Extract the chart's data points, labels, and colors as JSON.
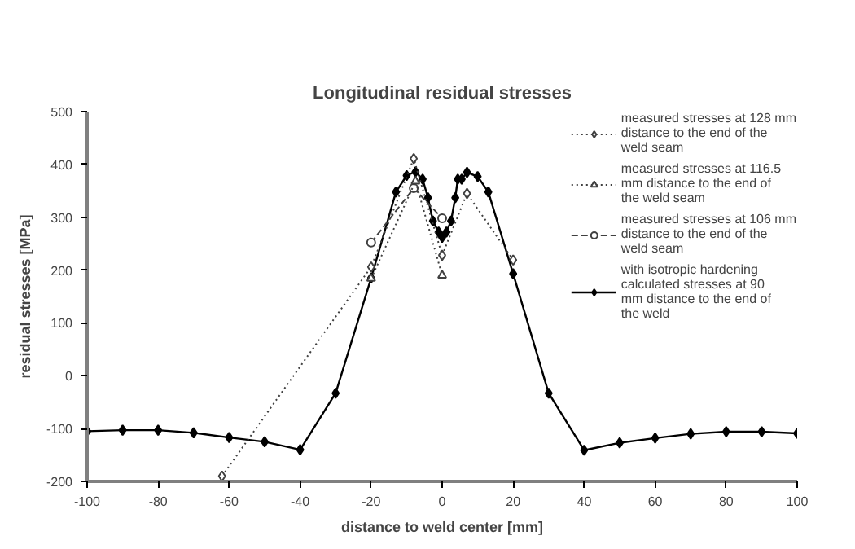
{
  "chart_data": {
    "type": "line",
    "title": "Longitudinal residual stresses",
    "xlabel": "distance to weld center [mm]",
    "ylabel": "residual stresses [MPa]",
    "xlim": [
      -100,
      100
    ],
    "xticks": [
      -100,
      -80,
      -60,
      -40,
      -20,
      0,
      20,
      40,
      60,
      80,
      100
    ],
    "ylim": [
      -200,
      500
    ],
    "yticks": [
      -200,
      -100,
      0,
      100,
      200,
      300,
      400,
      500
    ],
    "grid": false,
    "legend": "top right",
    "series": [
      {
        "name": "measured stresses at 128 mm distance to the end of the weld seam",
        "color": "#404040",
        "marker": "diamond",
        "line_style": "dotted",
        "x": [
          -62,
          -20,
          -8,
          0,
          7,
          20
        ],
        "values": [
          -190,
          206,
          411,
          228,
          345,
          219
        ]
      },
      {
        "name": "measured stresses at 116.5 mm distance to the end of the weld seam",
        "color": "#404040",
        "marker": "triangle",
        "line_style": "dotted",
        "x": [
          -20,
          -7.5,
          0
        ],
        "values": [
          184,
          368,
          190
        ]
      },
      {
        "name": "measured stresses at 106 mm distance to the end of the weld seam",
        "color": "#404040",
        "marker": "circle",
        "line_style": "dashed",
        "x": [
          -20,
          -8,
          0
        ],
        "values": [
          252,
          355,
          298
        ]
      },
      {
        "name": "with isotropic hardening calculated stresses at 90 mm distance to the end of the weld",
        "color": "#000000",
        "marker": "diamond",
        "line_style": "solid",
        "x": [
          -100,
          -90,
          -80,
          -70,
          -60,
          -50,
          -40,
          -30,
          -20,
          -13,
          -10,
          -7.5,
          -5.5,
          -4,
          -2.6,
          -1,
          0,
          1.2,
          2.5,
          3.7,
          4.4,
          5.5,
          7,
          10,
          13,
          20,
          30,
          40,
          50,
          60,
          70,
          80,
          90,
          100
        ],
        "values": [
          -105,
          -103,
          -103,
          -108,
          -117,
          -125,
          -140,
          -33,
          185,
          348,
          379,
          386,
          372,
          337,
          293,
          272,
          262,
          272,
          293,
          337,
          372,
          372,
          385,
          377,
          348,
          193,
          -33,
          -141,
          -127,
          -118,
          -110,
          -106,
          -106,
          -109
        ]
      }
    ]
  }
}
